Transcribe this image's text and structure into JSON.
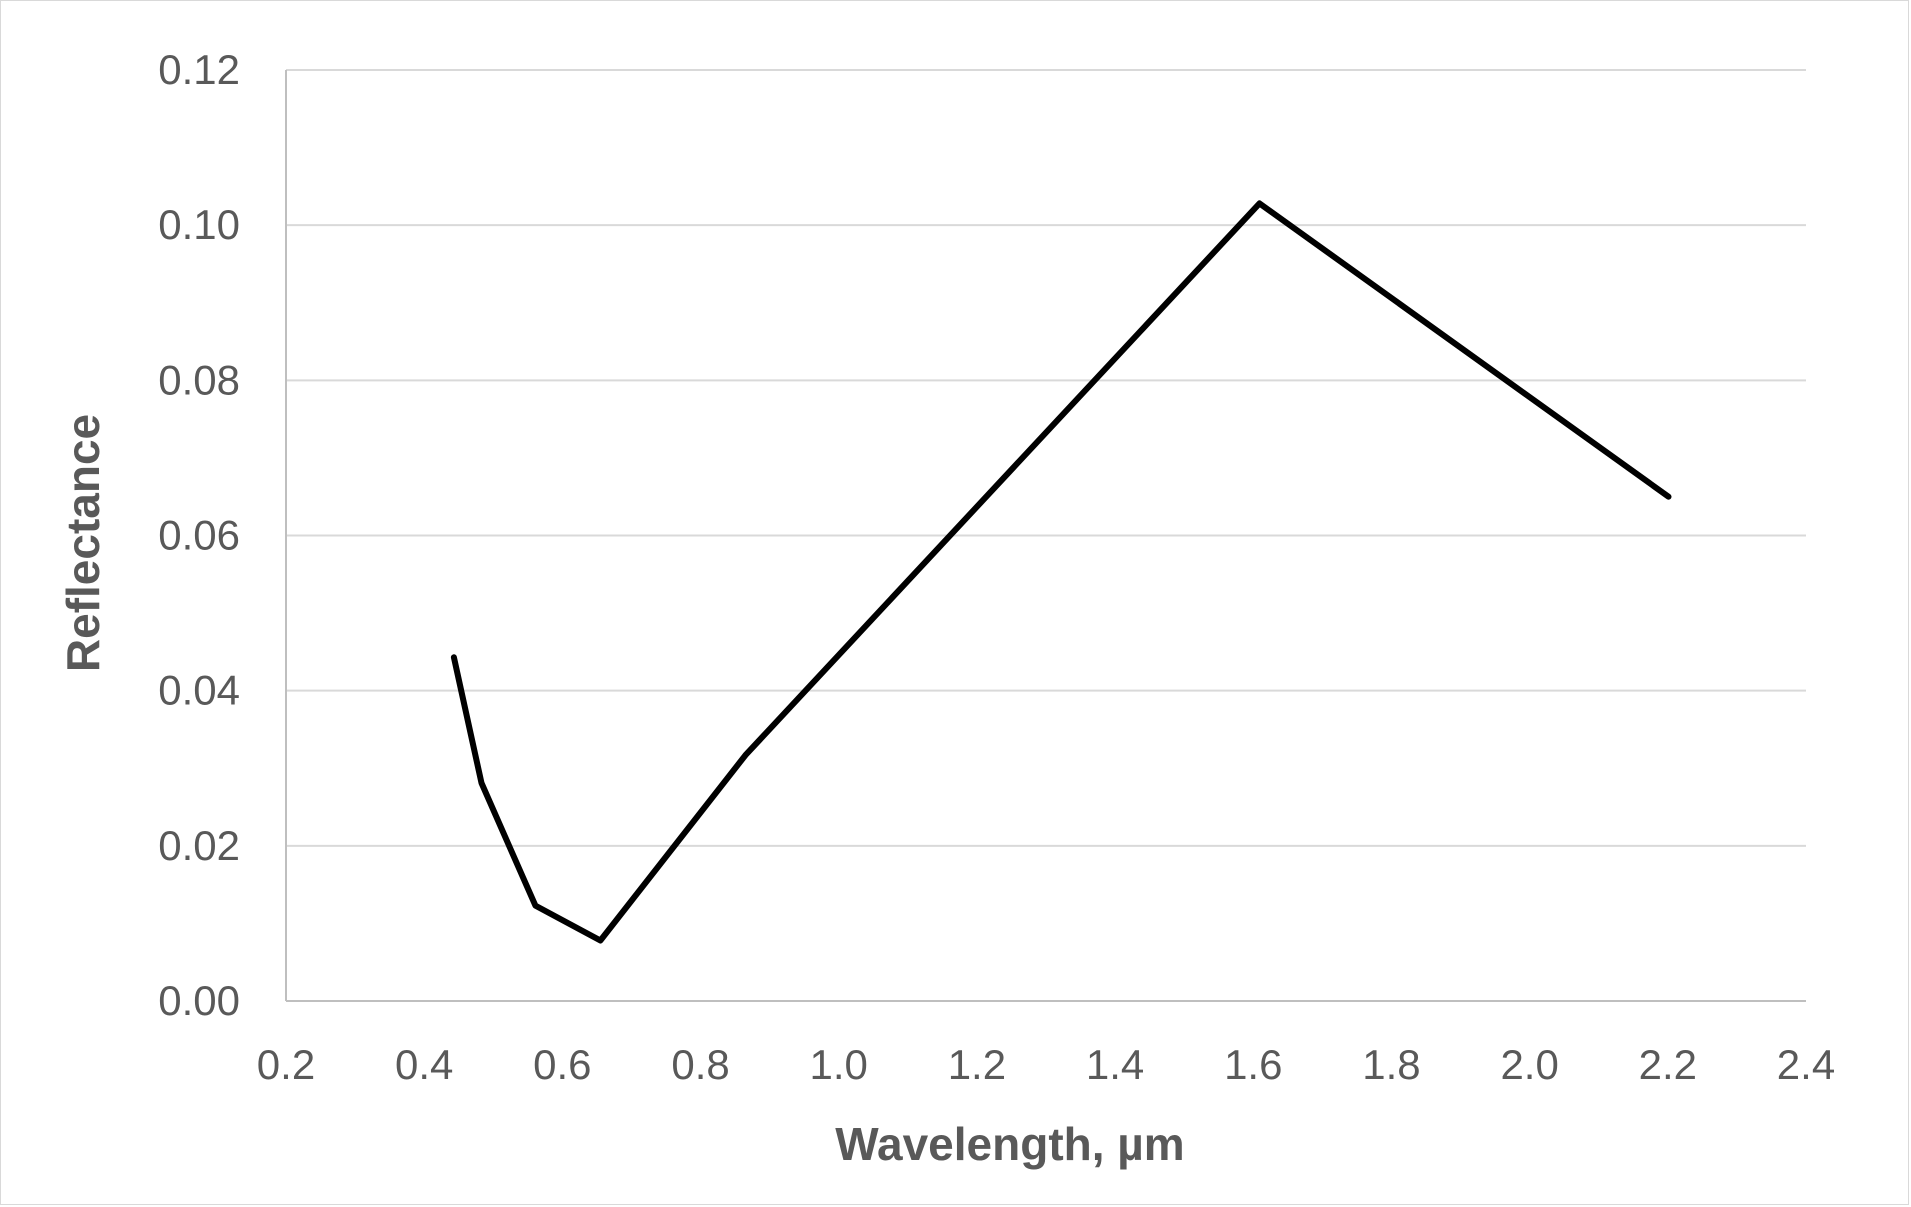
{
  "chart_data": {
    "type": "line",
    "title": "",
    "xlabel": "Wavelength, µm",
    "ylabel": "Reflectance",
    "xlim": [
      0.2,
      2.4
    ],
    "ylim": [
      0,
      0.12
    ],
    "xticks": [
      "0.2",
      "0.4",
      "0.6",
      "0.8",
      "1.0",
      "1.2",
      "1.4",
      "1.6",
      "1.8",
      "2.0",
      "2.2",
      "2.4"
    ],
    "yticks": [
      "0.00",
      "0.02",
      "0.04",
      "0.06",
      "0.08",
      "0.10",
      "0.12"
    ],
    "grid": "horizontal",
    "legend": "none",
    "series": [
      {
        "color": "#000000",
        "x": [
          0.443,
          0.483,
          0.561,
          0.655,
          0.865,
          1.609,
          2.201
        ],
        "y": [
          0.0443,
          0.0281,
          0.0123,
          0.0078,
          0.0317,
          0.1028,
          0.065
        ]
      }
    ],
    "colors": {
      "grid": "#d9d9d9",
      "axis": "#bfbfbf",
      "text": "#595959",
      "line": "#000000"
    }
  }
}
